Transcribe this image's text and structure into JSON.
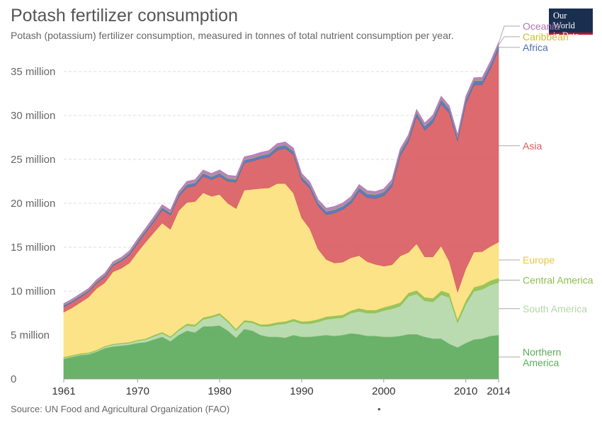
{
  "header": {
    "title": "Potash fertilizer consumption",
    "subtitle": "Potash (potassium) fertilizer consumption, measured in tonnes of total nutrient consumption per year.",
    "logo_line1": "Our World",
    "logo_line2": "in Data"
  },
  "footer": {
    "source": "Source: UN Food and Agricultural Organization (FAO)",
    "dot": "•"
  },
  "chart_data": {
    "type": "area",
    "stacked": true,
    "ylim": [
      0,
      37500000
    ],
    "xlim": [
      1961,
      2014
    ],
    "yticks": [
      0,
      5000000,
      10000000,
      15000000,
      20000000,
      25000000,
      30000000,
      35000000
    ],
    "ytick_labels": [
      "0",
      "5 million",
      "10 million",
      "15 million",
      "20 million",
      "25 million",
      "30 million",
      "35 million"
    ],
    "xticks": [
      1961,
      1970,
      1980,
      1990,
      2000,
      2010,
      2014
    ],
    "grid": "horizontal-dashed",
    "legend": "right-inline",
    "x": [
      1961,
      1962,
      1963,
      1964,
      1965,
      1966,
      1967,
      1968,
      1969,
      1970,
      1971,
      1972,
      1973,
      1974,
      1975,
      1976,
      1977,
      1978,
      1979,
      1980,
      1981,
      1982,
      1983,
      1984,
      1985,
      1986,
      1987,
      1988,
      1989,
      1990,
      1991,
      1992,
      1993,
      1994,
      1995,
      1996,
      1997,
      1998,
      1999,
      2000,
      2001,
      2002,
      2003,
      2004,
      2005,
      2006,
      2007,
      2008,
      2009,
      2010,
      2011,
      2012,
      2013,
      2014
    ],
    "series": [
      {
        "name": "Northern America",
        "label_lines": [
          "Northern",
          "America"
        ],
        "color": "#5aaa5a",
        "values": [
          2.3,
          2.5,
          2.7,
          2.8,
          3.1,
          3.5,
          3.7,
          3.8,
          3.9,
          4.1,
          4.2,
          4.5,
          4.8,
          4.3,
          5.0,
          5.5,
          5.3,
          6.0,
          6.0,
          6.1,
          5.5,
          4.7,
          5.7,
          5.5,
          5.0,
          4.8,
          4.8,
          4.7,
          5.0,
          4.8,
          4.8,
          4.9,
          5.0,
          4.9,
          5.0,
          5.2,
          5.1,
          4.9,
          4.9,
          4.8,
          4.8,
          4.9,
          5.1,
          5.1,
          4.8,
          4.6,
          4.6,
          4.0,
          3.6,
          4.1,
          4.5,
          4.6,
          4.9,
          5.0
        ]
      },
      {
        "name": "South America",
        "label_lines": [
          "South America"
        ],
        "color": "#b3d7a6",
        "values": [
          0.1,
          0.1,
          0.1,
          0.1,
          0.1,
          0.15,
          0.2,
          0.2,
          0.2,
          0.25,
          0.3,
          0.35,
          0.4,
          0.4,
          0.5,
          0.6,
          0.7,
          0.8,
          1.0,
          1.2,
          1.0,
          0.8,
          0.8,
          0.9,
          1.0,
          1.2,
          1.4,
          1.6,
          1.6,
          1.5,
          1.5,
          1.6,
          1.8,
          2.0,
          2.0,
          2.3,
          2.6,
          2.6,
          2.6,
          3.0,
          3.2,
          3.4,
          4.3,
          4.6,
          4.1,
          4.2,
          5.0,
          5.3,
          2.8,
          4.4,
          5.5,
          5.6,
          5.8,
          6.0
        ]
      },
      {
        "name": "Central America",
        "label_lines": [
          "Central America"
        ],
        "color": "#8dbf4a",
        "values": [
          0.1,
          0.1,
          0.1,
          0.1,
          0.1,
          0.1,
          0.1,
          0.1,
          0.1,
          0.1,
          0.1,
          0.15,
          0.15,
          0.15,
          0.15,
          0.2,
          0.2,
          0.2,
          0.2,
          0.2,
          0.2,
          0.2,
          0.2,
          0.2,
          0.2,
          0.25,
          0.25,
          0.25,
          0.25,
          0.25,
          0.3,
          0.3,
          0.3,
          0.3,
          0.3,
          0.3,
          0.35,
          0.35,
          0.35,
          0.35,
          0.4,
          0.4,
          0.4,
          0.4,
          0.4,
          0.4,
          0.45,
          0.45,
          0.4,
          0.45,
          0.45,
          0.5,
          0.5,
          0.5
        ]
      },
      {
        "name": "Europe",
        "label_lines": [
          "Europe"
        ],
        "color": "#fde07a",
        "values": [
          5.1,
          5.4,
          5.8,
          6.3,
          7.0,
          7.2,
          8.2,
          8.5,
          9.0,
          10.0,
          11.0,
          11.7,
          12.4,
          12.2,
          13.5,
          13.8,
          14.0,
          14.2,
          13.6,
          13.5,
          13.3,
          13.7,
          14.8,
          15.0,
          15.5,
          15.5,
          15.8,
          15.7,
          14.3,
          11.8,
          10.5,
          8.0,
          6.5,
          6.0,
          6.0,
          6.0,
          6.0,
          5.5,
          5.2,
          4.7,
          4.6,
          5.3,
          4.6,
          5.3,
          4.6,
          4.7,
          5.1,
          3.6,
          3.1,
          3.6,
          4.0,
          3.8,
          3.9,
          4.1
        ]
      },
      {
        "name": "Asia",
        "label_lines": [
          "Asia"
        ],
        "color": "#d95a5e",
        "values": [
          0.6,
          0.6,
          0.6,
          0.6,
          0.6,
          0.65,
          0.7,
          0.8,
          0.9,
          1.0,
          1.1,
          1.2,
          1.5,
          1.6,
          1.6,
          1.7,
          1.8,
          1.9,
          1.9,
          2.1,
          2.5,
          3.0,
          3.1,
          3.2,
          3.4,
          3.5,
          3.8,
          4.0,
          4.4,
          4.3,
          4.6,
          4.9,
          5.1,
          5.7,
          6.0,
          6.2,
          7.3,
          7.3,
          7.5,
          8.0,
          8.9,
          11.4,
          12.6,
          14.5,
          14.4,
          15.3,
          16.2,
          16.9,
          17.2,
          18.8,
          19.0,
          19.0,
          20.2,
          21.9
        ]
      },
      {
        "name": "Africa",
        "label_lines": [
          "Africa"
        ],
        "color": "#4f6fb0",
        "values": [
          0.2,
          0.2,
          0.2,
          0.2,
          0.2,
          0.2,
          0.2,
          0.2,
          0.25,
          0.25,
          0.25,
          0.3,
          0.3,
          0.3,
          0.3,
          0.35,
          0.35,
          0.35,
          0.35,
          0.35,
          0.35,
          0.35,
          0.35,
          0.35,
          0.35,
          0.4,
          0.4,
          0.4,
          0.4,
          0.4,
          0.4,
          0.4,
          0.4,
          0.4,
          0.4,
          0.4,
          0.45,
          0.45,
          0.45,
          0.45,
          0.45,
          0.45,
          0.45,
          0.45,
          0.5,
          0.5,
          0.5,
          0.5,
          0.4,
          0.5,
          0.5,
          0.5,
          0.5,
          0.5
        ]
      },
      {
        "name": "Caribbean",
        "label_lines": [
          "Caribbean"
        ],
        "color": "#d6d43b",
        "values": [
          0.05,
          0.05,
          0.05,
          0.05,
          0.05,
          0.05,
          0.05,
          0.05,
          0.05,
          0.05,
          0.05,
          0.05,
          0.05,
          0.05,
          0.05,
          0.05,
          0.05,
          0.05,
          0.05,
          0.05,
          0.05,
          0.05,
          0.05,
          0.05,
          0.05,
          0.05,
          0.05,
          0.05,
          0.05,
          0.05,
          0.05,
          0.05,
          0.05,
          0.05,
          0.05,
          0.05,
          0.05,
          0.05,
          0.05,
          0.05,
          0.05,
          0.05,
          0.05,
          0.05,
          0.05,
          0.05,
          0.05,
          0.05,
          0.05,
          0.05,
          0.05,
          0.05,
          0.05,
          0.05
        ]
      },
      {
        "name": "Oceania",
        "label_lines": [
          "Oceania"
        ],
        "color": "#b276b5",
        "values": [
          0.15,
          0.15,
          0.15,
          0.15,
          0.15,
          0.2,
          0.2,
          0.2,
          0.2,
          0.2,
          0.2,
          0.25,
          0.25,
          0.25,
          0.25,
          0.3,
          0.3,
          0.3,
          0.3,
          0.3,
          0.3,
          0.3,
          0.3,
          0.3,
          0.3,
          0.3,
          0.3,
          0.3,
          0.3,
          0.3,
          0.3,
          0.3,
          0.3,
          0.3,
          0.3,
          0.3,
          0.3,
          0.3,
          0.3,
          0.3,
          0.3,
          0.3,
          0.3,
          0.3,
          0.3,
          0.3,
          0.3,
          0.3,
          0.3,
          0.3,
          0.3,
          0.3,
          0.3,
          0.3
        ]
      }
    ]
  }
}
